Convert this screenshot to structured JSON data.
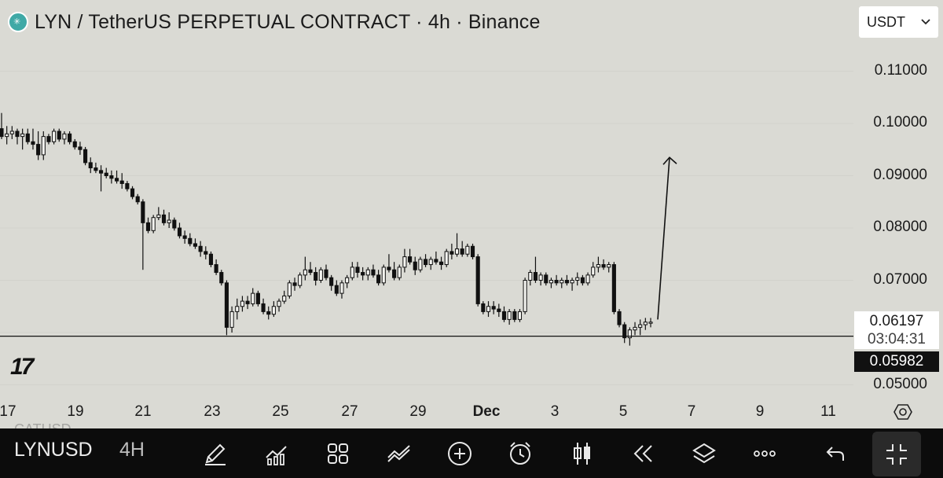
{
  "header": {
    "title": "LYN / TetherUS PERPETUAL CONTRACT · 4h · Binance"
  },
  "currency_select": {
    "value": "USDT"
  },
  "price_axis": {
    "ticks": [
      "0.11000",
      "0.10000",
      "0.09000",
      "0.08000",
      "0.07000",
      "0.05000"
    ]
  },
  "time_axis": {
    "ticks": [
      "17",
      "19",
      "21",
      "23",
      "25",
      "27",
      "29",
      "Dec",
      "3",
      "5",
      "7",
      "9",
      "11"
    ]
  },
  "last_price": {
    "value": "0.06197",
    "countdown": "03:04:31"
  },
  "close_price": {
    "value": "0.05982"
  },
  "branding": {
    "logo_text": "17"
  },
  "toolbar": {
    "symbol": "LYNUSD",
    "interval": "4H",
    "ghost_text": "CATUSD"
  },
  "icons": [
    "pencil-icon",
    "indicators-icon",
    "layouts-icon",
    "compare-icon",
    "add-icon",
    "alarm-icon",
    "candle-style-icon",
    "replay-icon",
    "layers-icon",
    "more-icon",
    "undo-icon",
    "fullscreen-exit-icon",
    "settings-icon"
  ],
  "chart_data": {
    "type": "candlestick",
    "ylim": [
      0.05,
      0.11
    ],
    "support_level": 0.0593,
    "projection": {
      "from": 0.0625,
      "to": 0.0935
    },
    "candles": [
      [
        0.099,
        0.102,
        0.097,
        0.0975
      ],
      [
        0.0975,
        0.0995,
        0.096,
        0.098
      ],
      [
        0.098,
        0.0995,
        0.097,
        0.0985
      ],
      [
        0.0985,
        0.099,
        0.096,
        0.0975
      ],
      [
        0.0975,
        0.099,
        0.095,
        0.098
      ],
      [
        0.098,
        0.099,
        0.096,
        0.0965
      ],
      [
        0.0965,
        0.099,
        0.095,
        0.096
      ],
      [
        0.096,
        0.0985,
        0.093,
        0.094
      ],
      [
        0.094,
        0.0985,
        0.093,
        0.0975
      ],
      [
        0.0975,
        0.098,
        0.096,
        0.0965
      ],
      [
        0.0965,
        0.099,
        0.096,
        0.0985
      ],
      [
        0.0985,
        0.099,
        0.0965,
        0.097
      ],
      [
        0.097,
        0.0985,
        0.096,
        0.098
      ],
      [
        0.098,
        0.0985,
        0.096,
        0.0965
      ],
      [
        0.0965,
        0.097,
        0.095,
        0.0955
      ],
      [
        0.0955,
        0.0965,
        0.094,
        0.095
      ],
      [
        0.095,
        0.0955,
        0.092,
        0.0925
      ],
      [
        0.0925,
        0.0935,
        0.0905,
        0.0915
      ],
      [
        0.0915,
        0.0925,
        0.0905,
        0.091
      ],
      [
        0.091,
        0.092,
        0.087,
        0.0905
      ],
      [
        0.0905,
        0.0915,
        0.0895,
        0.09
      ],
      [
        0.09,
        0.091,
        0.0885,
        0.0895
      ],
      [
        0.0895,
        0.091,
        0.0885,
        0.089
      ],
      [
        0.089,
        0.0905,
        0.0875,
        0.0885
      ],
      [
        0.0885,
        0.089,
        0.087,
        0.0875
      ],
      [
        0.0875,
        0.088,
        0.0855,
        0.086
      ],
      [
        0.086,
        0.0865,
        0.0845,
        0.085
      ],
      [
        0.085,
        0.0855,
        0.072,
        0.081
      ],
      [
        0.081,
        0.082,
        0.079,
        0.0795
      ],
      [
        0.0795,
        0.0825,
        0.079,
        0.082
      ],
      [
        0.082,
        0.084,
        0.0815,
        0.0825
      ],
      [
        0.0825,
        0.0835,
        0.0805,
        0.081
      ],
      [
        0.081,
        0.083,
        0.08,
        0.0815
      ],
      [
        0.0815,
        0.082,
        0.0795,
        0.08
      ],
      [
        0.08,
        0.081,
        0.078,
        0.0785
      ],
      [
        0.0785,
        0.0795,
        0.077,
        0.078
      ],
      [
        0.078,
        0.079,
        0.0765,
        0.077
      ],
      [
        0.077,
        0.078,
        0.076,
        0.0765
      ],
      [
        0.0765,
        0.0775,
        0.0745,
        0.0755
      ],
      [
        0.0755,
        0.0765,
        0.074,
        0.075
      ],
      [
        0.075,
        0.0755,
        0.0725,
        0.073
      ],
      [
        0.073,
        0.074,
        0.071,
        0.0715
      ],
      [
        0.0715,
        0.072,
        0.069,
        0.0695
      ],
      [
        0.0695,
        0.07,
        0.0595,
        0.061
      ],
      [
        0.061,
        0.065,
        0.06,
        0.064
      ],
      [
        0.064,
        0.0665,
        0.0625,
        0.065
      ],
      [
        0.065,
        0.067,
        0.064,
        0.066
      ],
      [
        0.066,
        0.067,
        0.0645,
        0.0655
      ],
      [
        0.0655,
        0.0685,
        0.065,
        0.0675
      ],
      [
        0.0675,
        0.068,
        0.065,
        0.0655
      ],
      [
        0.0655,
        0.0665,
        0.0635,
        0.064
      ],
      [
        0.064,
        0.065,
        0.0625,
        0.0635
      ],
      [
        0.0635,
        0.066,
        0.063,
        0.065
      ],
      [
        0.065,
        0.0665,
        0.064,
        0.066
      ],
      [
        0.066,
        0.068,
        0.0655,
        0.067
      ],
      [
        0.067,
        0.07,
        0.0665,
        0.0695
      ],
      [
        0.0695,
        0.0705,
        0.068,
        0.069
      ],
      [
        0.069,
        0.0715,
        0.0685,
        0.071
      ],
      [
        0.071,
        0.0745,
        0.07,
        0.072
      ],
      [
        0.072,
        0.0735,
        0.071,
        0.0715
      ],
      [
        0.0715,
        0.0725,
        0.069,
        0.07
      ],
      [
        0.07,
        0.0725,
        0.0695,
        0.072
      ],
      [
        0.072,
        0.073,
        0.07,
        0.0705
      ],
      [
        0.0705,
        0.071,
        0.068,
        0.069
      ],
      [
        0.069,
        0.07,
        0.067,
        0.0675
      ],
      [
        0.0675,
        0.07,
        0.0665,
        0.0695
      ],
      [
        0.0695,
        0.071,
        0.0685,
        0.0705
      ],
      [
        0.0705,
        0.0735,
        0.07,
        0.0725
      ],
      [
        0.0725,
        0.0735,
        0.0705,
        0.0715
      ],
      [
        0.0715,
        0.0725,
        0.07,
        0.071
      ],
      [
        0.071,
        0.0725,
        0.07,
        0.072
      ],
      [
        0.072,
        0.073,
        0.0705,
        0.071
      ],
      [
        0.071,
        0.072,
        0.069,
        0.0695
      ],
      [
        0.0695,
        0.073,
        0.069,
        0.0725
      ],
      [
        0.0725,
        0.075,
        0.0715,
        0.072
      ],
      [
        0.072,
        0.0735,
        0.07,
        0.0705
      ],
      [
        0.0705,
        0.073,
        0.07,
        0.0725
      ],
      [
        0.0725,
        0.076,
        0.0715,
        0.0745
      ],
      [
        0.0745,
        0.076,
        0.073,
        0.0735
      ],
      [
        0.0735,
        0.0745,
        0.071,
        0.072
      ],
      [
        0.072,
        0.0745,
        0.0715,
        0.074
      ],
      [
        0.074,
        0.075,
        0.0725,
        0.073
      ],
      [
        0.073,
        0.0745,
        0.072,
        0.074
      ],
      [
        0.074,
        0.0755,
        0.073,
        0.0735
      ],
      [
        0.0735,
        0.0745,
        0.072,
        0.073
      ],
      [
        0.073,
        0.076,
        0.0725,
        0.0755
      ],
      [
        0.0755,
        0.077,
        0.074,
        0.075
      ],
      [
        0.075,
        0.079,
        0.0745,
        0.076
      ],
      [
        0.076,
        0.0775,
        0.0745,
        0.075
      ],
      [
        0.075,
        0.077,
        0.0745,
        0.0765
      ],
      [
        0.0765,
        0.077,
        0.074,
        0.0745
      ],
      [
        0.0745,
        0.075,
        0.065,
        0.0655
      ],
      [
        0.0655,
        0.066,
        0.0635,
        0.064
      ],
      [
        0.064,
        0.066,
        0.063,
        0.065
      ],
      [
        0.065,
        0.066,
        0.0635,
        0.0645
      ],
      [
        0.0645,
        0.0655,
        0.063,
        0.064
      ],
      [
        0.064,
        0.065,
        0.062,
        0.0625
      ],
      [
        0.0625,
        0.0645,
        0.0615,
        0.064
      ],
      [
        0.064,
        0.0645,
        0.062,
        0.0625
      ],
      [
        0.0625,
        0.0645,
        0.062,
        0.064
      ],
      [
        0.064,
        0.0705,
        0.0635,
        0.07
      ],
      [
        0.07,
        0.072,
        0.069,
        0.0715
      ],
      [
        0.0715,
        0.0745,
        0.0695,
        0.07
      ],
      [
        0.07,
        0.0715,
        0.069,
        0.071
      ],
      [
        0.071,
        0.0715,
        0.069,
        0.0695
      ],
      [
        0.0695,
        0.0705,
        0.0685,
        0.07
      ],
      [
        0.07,
        0.071,
        0.069,
        0.0695
      ],
      [
        0.0695,
        0.0705,
        0.0685,
        0.07
      ],
      [
        0.07,
        0.071,
        0.069,
        0.0695
      ],
      [
        0.0695,
        0.0705,
        0.068,
        0.07
      ],
      [
        0.07,
        0.0715,
        0.069,
        0.0705
      ],
      [
        0.0705,
        0.071,
        0.069,
        0.0695
      ],
      [
        0.0695,
        0.0715,
        0.069,
        0.071
      ],
      [
        0.071,
        0.0735,
        0.0705,
        0.0725
      ],
      [
        0.0725,
        0.0745,
        0.0715,
        0.073
      ],
      [
        0.073,
        0.074,
        0.072,
        0.0725
      ],
      [
        0.0725,
        0.0735,
        0.0715,
        0.073
      ],
      [
        0.073,
        0.0735,
        0.0635,
        0.064
      ],
      [
        0.064,
        0.0645,
        0.061,
        0.0615
      ],
      [
        0.0615,
        0.062,
        0.058,
        0.059
      ],
      [
        0.059,
        0.061,
        0.0575,
        0.0605
      ],
      [
        0.0605,
        0.062,
        0.0595,
        0.061
      ],
      [
        0.061,
        0.0625,
        0.0595,
        0.0615
      ],
      [
        0.0615,
        0.0628,
        0.0605,
        0.062
      ],
      [
        0.062,
        0.0628,
        0.061,
        0.062
      ]
    ]
  }
}
